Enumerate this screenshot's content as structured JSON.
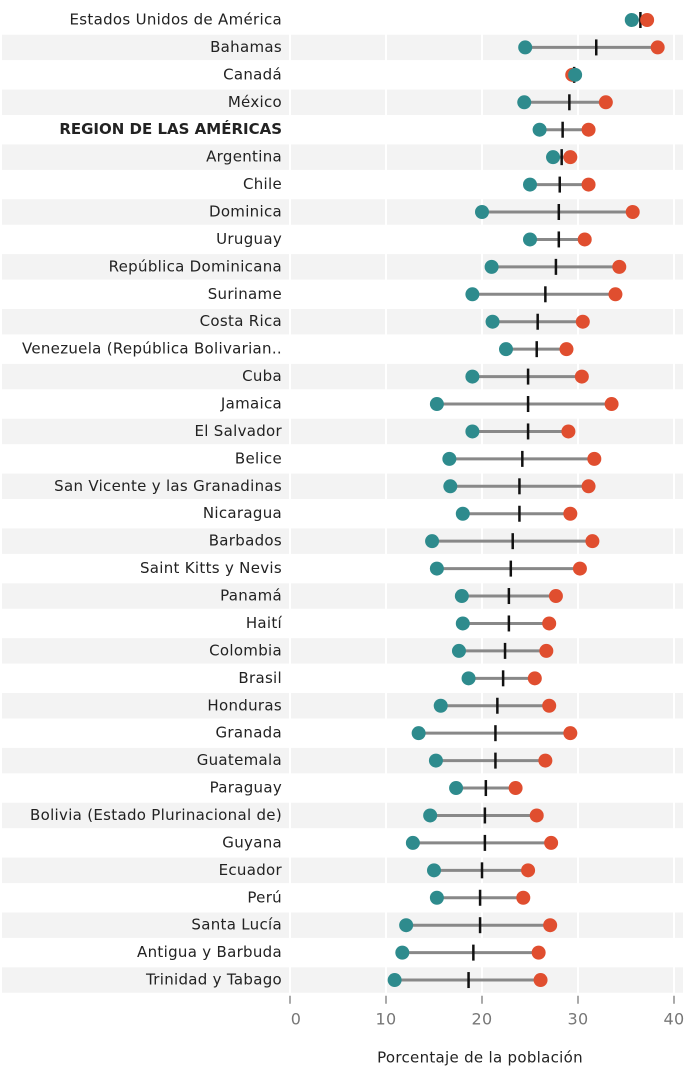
{
  "chart_data": {
    "type": "dumbbell",
    "x_label": "Porcentaje de la población",
    "categories": [
      "Estados Unidos de América",
      "Bahamas",
      "Canadá",
      "México",
      "REGION DE LAS AMÉRICAS",
      "Argentina",
      "Chile",
      "Dominica",
      "Uruguay",
      "República Dominicana",
      "Suriname",
      "Costa Rica",
      "Venezuela (República Bolivarian..",
      "Cuba",
      "Jamaica",
      "El Salvador",
      "Belice",
      "San Vicente y las Granadinas",
      "Nicaragua",
      "Barbados",
      "Saint Kitts y Nevis",
      "Panamá",
      "Haití",
      "Colombia",
      "Brasil",
      "Honduras",
      "Granada",
      "Guatemala",
      "Paraguay",
      "Bolivia (Estado Plurinacional de)",
      "Guyana",
      "Ecuador",
      "Perú",
      "Santa Lucía",
      "Antigua y Barbuda",
      "Trinidad y Tabago"
    ],
    "series": [
      {
        "color": "#2e8b8d",
        "values": [
          35.6,
          24.5,
          29.7,
          24.4,
          26.0,
          27.4,
          25.0,
          20.0,
          25.0,
          21.0,
          19.0,
          21.1,
          22.5,
          19.0,
          15.3,
          19.0,
          16.6,
          16.7,
          18.0,
          14.8,
          15.3,
          17.9,
          18.0,
          17.6,
          18.6,
          15.7,
          13.4,
          15.2,
          17.3,
          14.6,
          12.8,
          15.0,
          15.3,
          12.1,
          11.7,
          10.9
        ]
      },
      {
        "color": "#e04e2f",
        "values": [
          37.2,
          38.3,
          29.4,
          32.9,
          31.1,
          29.2,
          31.1,
          35.7,
          30.7,
          34.3,
          33.9,
          30.5,
          28.8,
          30.4,
          33.5,
          29.0,
          31.7,
          31.1,
          29.2,
          31.5,
          30.2,
          27.7,
          27.0,
          26.7,
          25.5,
          27.0,
          29.2,
          26.6,
          23.5,
          25.7,
          27.2,
          24.8,
          24.3,
          27.1,
          25.9,
          26.1
        ]
      },
      {
        "color": "#111111",
        "values": [
          36.5,
          31.9,
          29.6,
          29.1,
          28.4,
          28.3,
          28.1,
          28.0,
          28.0,
          27.7,
          26.6,
          25.8,
          25.7,
          24.8,
          24.8,
          24.8,
          24.2,
          23.9,
          23.9,
          23.2,
          23.0,
          22.8,
          22.8,
          22.4,
          22.2,
          21.6,
          21.4,
          21.4,
          20.4,
          20.3,
          20.3,
          20.0,
          19.8,
          19.8,
          19.1,
          18.6
        ]
      }
    ],
    "xlim": [
      0,
      40
    ],
    "xticks": [
      0,
      10,
      20,
      30,
      40
    ],
    "grid": true
  }
}
